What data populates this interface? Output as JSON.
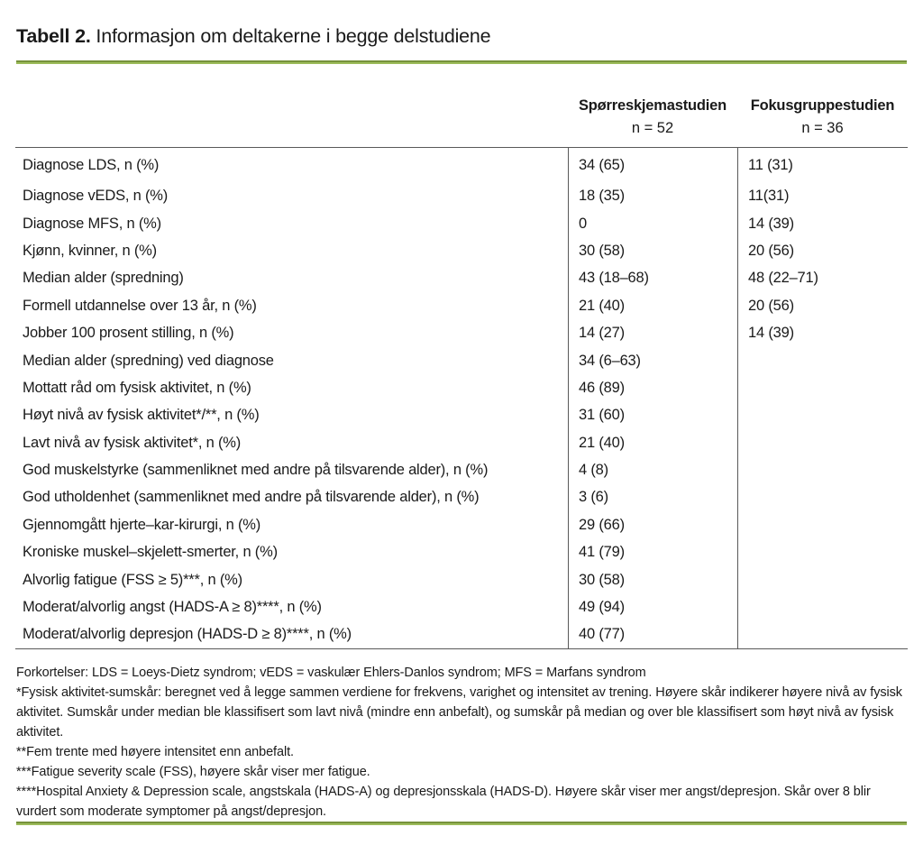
{
  "colors": {
    "rule_dark": "#76923C",
    "rule_light": "#9BBB59",
    "table_border": "#595959",
    "text_color": "#1a1a1a"
  },
  "title": {
    "label": "Tabell 2.",
    "text": "Informasjon om deltakerne i begge delstudiene"
  },
  "table": {
    "columns": [
      {
        "label": "Spørreskjemastudien",
        "sub": "n = 52"
      },
      {
        "label": "Fokusgruppestudien",
        "sub": "n = 36"
      }
    ],
    "rows": [
      {
        "label": "Diagnose LDS, n (%)",
        "questionnaire": "34 (65)",
        "focusgroup": "11 (31)"
      },
      {
        "label": "Diagnose vEDS, n (%)",
        "questionnaire": "18 (35)",
        "focusgroup": "11(31)"
      },
      {
        "label": "Diagnose MFS, n (%)",
        "questionnaire": "0",
        "focusgroup": "14 (39)"
      },
      {
        "label": "Kjønn, kvinner, n (%)",
        "questionnaire": "30 (58)",
        "focusgroup": "20 (56)"
      },
      {
        "label": "Median alder (spredning)",
        "questionnaire": "43 (18–68)",
        "focusgroup": "48 (22–71)"
      },
      {
        "label": "Formell utdannelse over 13 år, n (%)",
        "questionnaire": "21 (40)",
        "focusgroup": "20 (56)"
      },
      {
        "label": "Jobber 100 prosent stilling, n (%)",
        "questionnaire": "14 (27)",
        "focusgroup": "14 (39)"
      },
      {
        "label": "Median alder (spredning) ved diagnose",
        "questionnaire": "34 (6–63)",
        "focusgroup": ""
      },
      {
        "label": "Mottatt råd om fysisk aktivitet, n (%)",
        "questionnaire": "46 (89)",
        "focusgroup": ""
      },
      {
        "label": "Høyt nivå av fysisk aktivitet*/**, n (%)",
        "questionnaire": "31 (60)",
        "focusgroup": ""
      },
      {
        "label": "Lavt nivå av fysisk aktivitet*, n (%)",
        "questionnaire": "21 (40)",
        "focusgroup": ""
      },
      {
        "label": "God muskelstyrke (sammenliknet med andre på tilsvarende alder), n (%)",
        "questionnaire": "4 (8)",
        "focusgroup": ""
      },
      {
        "label": "God utholdenhet (sammenliknet med andre på tilsvarende alder), n (%)",
        "questionnaire": "3 (6)",
        "focusgroup": ""
      },
      {
        "label": "Gjennomgått hjerte–kar-kirurgi, n (%)",
        "questionnaire": "29 (66)",
        "focusgroup": ""
      },
      {
        "label": "Kroniske muskel–skjelett-smerter, n (%)",
        "questionnaire": "41 (79)",
        "focusgroup": ""
      },
      {
        "label": "Alvorlig fatigue (FSS ≥ 5)***, n (%)",
        "questionnaire": "30 (58)",
        "focusgroup": ""
      },
      {
        "label": "Moderat/alvorlig angst (HADS-A ≥ 8)****, n (%)",
        "questionnaire": "49 (94)",
        "focusgroup": ""
      },
      {
        "label": "Moderat/alvorlig depresjon (HADS-D ≥ 8)****, n (%)",
        "questionnaire": "40 (77)",
        "focusgroup": ""
      }
    ]
  },
  "footnotes": [
    "Forkortelser: LDS = Loeys-Dietz syndrom; vEDS = vaskulær Ehlers-Danlos syndrom; MFS = Marfans syndrom",
    "*Fysisk aktivitet-sumskår: beregnet ved å legge sammen verdiene for frekvens, varighet og intensitet av trening. Høyere skår indikerer høyere nivå av fysisk aktivitet. Sumskår under median ble klassifisert som lavt nivå (mindre enn anbefalt), og sumskår på median og over ble klassifisert som høyt nivå av fysisk aktivitet.",
    "**Fem trente med høyere intensitet enn anbefalt.",
    "***Fatigue severity scale (FSS), høyere skår viser mer fatigue.",
    "****Hospital Anxiety & Depression scale, angstskala (HADS-A) og depresjonsskala (HADS-D). Høyere skår viser mer angst/depresjon. Skår over 8 blir vurdert som moderate symptomer på angst/depresjon."
  ]
}
